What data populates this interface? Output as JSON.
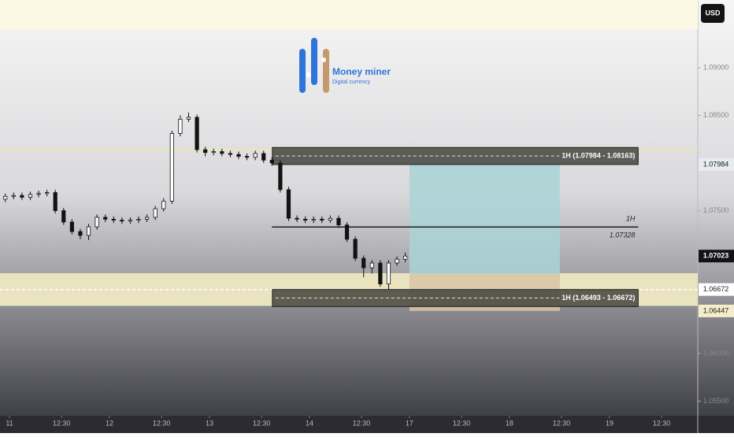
{
  "chart_data": {
    "type": "candlestick",
    "currency": "USD",
    "logo": {
      "title": "Money miner",
      "subtitle": "Digital currency"
    },
    "x": [
      -1,
      1,
      3,
      5,
      7,
      9,
      11,
      13,
      15,
      17,
      19,
      21,
      23,
      25,
      27,
      29,
      31,
      33,
      35,
      37,
      39,
      41,
      43,
      45,
      47,
      49,
      51,
      53,
      55,
      57,
      59,
      61,
      63,
      65,
      67,
      69,
      71,
      73,
      75,
      77,
      79,
      81,
      83,
      85,
      87,
      89,
      91,
      93,
      95
    ],
    "open": [
      1.0762,
      1.0765,
      1.0766,
      1.0764,
      1.0767,
      1.0768,
      1.0769,
      1.075,
      1.0738,
      1.0728,
      1.0724,
      1.0733,
      1.0743,
      1.0741,
      1.074,
      1.0739,
      1.074,
      1.0741,
      1.0743,
      1.0752,
      1.076,
      1.0831,
      1.0846,
      1.0848,
      1.0814,
      1.0811,
      1.0812,
      1.081,
      1.0809,
      1.0807,
      1.0806,
      1.081,
      1.0803,
      1.08,
      1.0772,
      1.0742,
      1.0741,
      1.074,
      1.0741,
      1.074,
      1.0742,
      1.0735,
      1.072,
      1.07,
      1.069,
      1.0695,
      1.0673,
      1.0695,
      1.0699
    ],
    "high": [
      1.0768,
      1.0769,
      1.0769,
      1.077,
      1.0771,
      1.0772,
      1.0772,
      1.0753,
      1.0741,
      1.0731,
      1.0736,
      1.0746,
      1.0746,
      1.0744,
      1.0743,
      1.0743,
      1.0744,
      1.0746,
      1.0755,
      1.0763,
      1.0834,
      1.085,
      1.0853,
      1.0851,
      1.0817,
      1.0815,
      1.0815,
      1.0813,
      1.0812,
      1.081,
      1.0813,
      1.0813,
      1.0806,
      1.0803,
      1.0775,
      1.0745,
      1.0744,
      1.0744,
      1.0744,
      1.0745,
      1.0745,
      1.0738,
      1.0723,
      1.0703,
      1.0698,
      1.0698,
      1.0698,
      1.0702,
      1.0706
    ],
    "low": [
      1.0759,
      1.0762,
      1.0761,
      1.0761,
      1.0764,
      1.0765,
      1.0747,
      1.0735,
      1.0725,
      1.072,
      1.0719,
      1.073,
      1.0738,
      1.0737,
      1.0736,
      1.0736,
      1.0737,
      1.0738,
      1.074,
      1.0749,
      1.0757,
      1.0828,
      1.0843,
      1.0811,
      1.0807,
      1.0808,
      1.0807,
      1.0806,
      1.0804,
      1.0803,
      1.0803,
      1.08,
      1.0797,
      1.0769,
      1.0739,
      1.0738,
      1.0737,
      1.0737,
      1.0737,
      1.0737,
      1.0732,
      1.0717,
      1.0697,
      1.068,
      1.0684,
      1.067,
      1.0667,
      1.0692,
      1.0696
    ],
    "close": [
      1.0765,
      1.0766,
      1.0764,
      1.0767,
      1.0768,
      1.0769,
      1.075,
      1.0738,
      1.0728,
      1.0724,
      1.0733,
      1.0743,
      1.0741,
      1.074,
      1.0739,
      1.074,
      1.0741,
      1.0743,
      1.0752,
      1.076,
      1.0831,
      1.0846,
      1.0848,
      1.0814,
      1.0811,
      1.0812,
      1.081,
      1.0809,
      1.0807,
      1.0806,
      1.081,
      1.0803,
      1.08,
      1.0772,
      1.0742,
      1.0741,
      1.074,
      1.0741,
      1.074,
      1.0742,
      1.0735,
      1.072,
      1.07,
      1.069,
      1.0695,
      1.0673,
      1.0695,
      1.0699,
      1.07023
    ],
    "up_color": "#ffffff",
    "down_color": "#131313",
    "xlim": [
      -2.27,
      165.2
    ],
    "xticks": [
      {
        "value": 0,
        "label": "11"
      },
      {
        "value": 12.5,
        "label": "12:30"
      },
      {
        "value": 24,
        "label": "12"
      },
      {
        "value": 36.5,
        "label": "12:30"
      },
      {
        "value": 48,
        "label": "13"
      },
      {
        "value": 60.5,
        "label": "12:30"
      },
      {
        "value": 72,
        "label": "14"
      },
      {
        "value": 84.5,
        "label": "12:30"
      },
      {
        "value": 96,
        "label": "17"
      },
      {
        "value": 108.5,
        "label": "12:30"
      },
      {
        "value": 120,
        "label": "18"
      },
      {
        "value": 132.5,
        "label": "12:30"
      },
      {
        "value": 144,
        "label": "19"
      },
      {
        "value": 156.5,
        "label": "12:30"
      }
    ],
    "ylim": [
      1.05347,
      1.09711
    ],
    "yticks": [
      {
        "value": 1.055,
        "label": "1.05500"
      },
      {
        "value": 1.06,
        "label": "1.06000"
      },
      {
        "value": 1.075,
        "label": "1.07500"
      },
      {
        "value": 1.085,
        "label": "1.08500"
      },
      {
        "value": 1.09,
        "label": "1.09000"
      }
    ],
    "bands": [
      {
        "low": 1.09405,
        "high": 1.09711,
        "color": "#fbf8e4"
      },
      {
        "low": 1.065,
        "high": 1.06843,
        "color": "#e9e4bf"
      }
    ],
    "levels": [
      {
        "value": 1.0814,
        "color": "#f3e7a6",
        "dash": false
      },
      {
        "value": 1.06672,
        "color": "#ffffff",
        "dash": true
      }
    ],
    "zones": [
      {
        "label": "1H (1.07984 - 1.08163)",
        "low": 1.07984,
        "high": 1.08163,
        "x0": 63.1,
        "x1": 150.9
      },
      {
        "label": "1H (1.06493 - 1.06672)",
        "low": 1.06493,
        "high": 1.06672,
        "x0": 63.1,
        "x1": 150.9
      }
    ],
    "hline": {
      "value": 1.07328,
      "x0": 63,
      "x1": 150.9,
      "name": "1H",
      "label": "1.07328"
    },
    "position": {
      "target": 1.07984,
      "entry": 1.06835,
      "stop": 1.06447,
      "x0": 96,
      "x1": 132.1,
      "profit_color": "#a9d3d6",
      "loss_color": "#d9c4a4"
    },
    "price_labels": [
      {
        "value": 1.07984,
        "label": "1.07984",
        "bg": "#e6ecf0"
      },
      {
        "value": 1.06672,
        "label": "1.06672",
        "bg": "#ffffff"
      },
      {
        "value": 1.06447,
        "label": "1.06447",
        "bg": "#f3edc9"
      }
    ],
    "last": {
      "value": 1.07023,
      "label": "1.07023"
    }
  }
}
